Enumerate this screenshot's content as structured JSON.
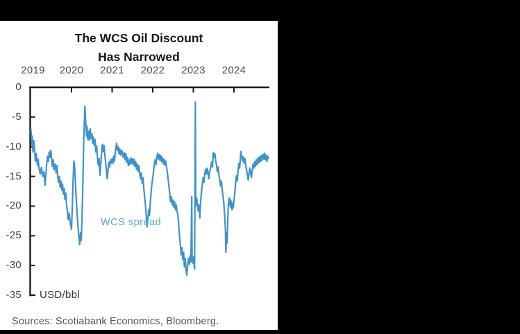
{
  "page": {
    "background": "#000000",
    "panel_background": "#ffffff"
  },
  "title": {
    "line1": "The WCS Oil Discount",
    "line2": "Has Narrowed"
  },
  "footer": {
    "sources": "Sources: Scotiabank Economics, Bloomberg."
  },
  "chart_data": {
    "type": "line",
    "title": "The WCS Oil Discount Has Narrowed",
    "series_label": "WCS spread",
    "unit_label": "USD/bbl",
    "x_ticks": [
      2019,
      2020,
      2021,
      2022,
      2023,
      2024
    ],
    "y_ticks": [
      0,
      -5,
      -10,
      -15,
      -20,
      -25,
      -30,
      -35
    ],
    "xlim": [
      2019.0,
      2024.87
    ],
    "ylim": [
      -35,
      0
    ],
    "grid": false,
    "legend_position": "annotation-inside-plot",
    "line_color": "#3f93cb",
    "annotation_color": "#57a4d5",
    "axis_color": "#1a1a1a",
    "series": [
      {
        "name": "WCS spread",
        "points": [
          [
            2019.0,
            -7.0
          ],
          [
            2019.02,
            -9.6
          ],
          [
            2019.03,
            -8.2
          ],
          [
            2019.05,
            -10.9
          ],
          [
            2019.07,
            -9.0
          ],
          [
            2019.09,
            -10.3
          ],
          [
            2019.11,
            -12.4
          ],
          [
            2019.13,
            -11.2
          ],
          [
            2019.16,
            -13.1
          ],
          [
            2019.18,
            -12.1
          ],
          [
            2019.2,
            -13.6
          ],
          [
            2019.23,
            -14.6
          ],
          [
            2019.26,
            -13.5
          ],
          [
            2019.29,
            -15.0
          ],
          [
            2019.32,
            -14.2
          ],
          [
            2019.35,
            -16.5
          ],
          [
            2019.37,
            -14.8
          ],
          [
            2019.39,
            -12.8
          ],
          [
            2019.41,
            -11.6
          ],
          [
            2019.43,
            -12.5
          ],
          [
            2019.45,
            -10.9
          ],
          [
            2019.47,
            -11.8
          ],
          [
            2019.49,
            -10.6
          ],
          [
            2019.51,
            -11.9
          ],
          [
            2019.53,
            -13.3
          ],
          [
            2019.55,
            -12.2
          ],
          [
            2019.57,
            -13.9
          ],
          [
            2019.6,
            -12.9
          ],
          [
            2019.62,
            -14.4
          ],
          [
            2019.64,
            -13.2
          ],
          [
            2019.66,
            -14.9
          ],
          [
            2019.68,
            -16.0
          ],
          [
            2019.7,
            -15.0
          ],
          [
            2019.72,
            -16.8
          ],
          [
            2019.74,
            -15.8
          ],
          [
            2019.76,
            -17.3
          ],
          [
            2019.78,
            -16.3
          ],
          [
            2019.8,
            -18.0
          ],
          [
            2019.82,
            -17.0
          ],
          [
            2019.84,
            -18.9
          ],
          [
            2019.86,
            -17.8
          ],
          [
            2019.88,
            -19.9
          ],
          [
            2019.9,
            -21.0
          ],
          [
            2019.92,
            -22.3
          ],
          [
            2019.94,
            -21.2
          ],
          [
            2019.96,
            -22.2
          ],
          [
            2019.98,
            -23.2
          ],
          [
            2020.0,
            -23.9
          ],
          [
            2020.02,
            -20.0
          ],
          [
            2020.04,
            -15.5
          ],
          [
            2020.06,
            -12.4
          ],
          [
            2020.08,
            -13.8
          ],
          [
            2020.1,
            -16.5
          ],
          [
            2020.12,
            -19.0
          ],
          [
            2020.14,
            -21.5
          ],
          [
            2020.16,
            -23.5
          ],
          [
            2020.18,
            -25.0
          ],
          [
            2020.2,
            -26.5
          ],
          [
            2020.22,
            -24.5
          ],
          [
            2020.24,
            -25.8
          ],
          [
            2020.26,
            -22.0
          ],
          [
            2020.28,
            -16.0
          ],
          [
            2020.3,
            -9.5
          ],
          [
            2020.32,
            -5.0
          ],
          [
            2020.33,
            -3.2
          ],
          [
            2020.35,
            -6.0
          ],
          [
            2020.37,
            -8.2
          ],
          [
            2020.38,
            -6.5
          ],
          [
            2020.4,
            -8.8
          ],
          [
            2020.42,
            -7.4
          ],
          [
            2020.44,
            -8.9
          ],
          [
            2020.46,
            -7.0
          ],
          [
            2020.48,
            -8.6
          ],
          [
            2020.5,
            -7.8
          ],
          [
            2020.52,
            -9.4
          ],
          [
            2020.54,
            -8.4
          ],
          [
            2020.56,
            -9.8
          ],
          [
            2020.58,
            -8.8
          ],
          [
            2020.6,
            -10.9
          ],
          [
            2020.62,
            -9.9
          ],
          [
            2020.64,
            -11.9
          ],
          [
            2020.66,
            -13.1
          ],
          [
            2020.68,
            -12.0
          ],
          [
            2020.7,
            -14.8
          ],
          [
            2020.72,
            -13.0
          ],
          [
            2020.74,
            -11.0
          ],
          [
            2020.76,
            -9.6
          ],
          [
            2020.78,
            -10.8
          ],
          [
            2020.8,
            -9.8
          ],
          [
            2020.82,
            -11.4
          ],
          [
            2020.84,
            -12.6
          ],
          [
            2020.86,
            -14.0
          ],
          [
            2020.88,
            -15.4
          ],
          [
            2020.9,
            -13.8
          ],
          [
            2020.92,
            -12.6
          ],
          [
            2020.94,
            -13.4
          ],
          [
            2020.96,
            -12.2
          ],
          [
            2020.98,
            -12.8
          ],
          [
            2021.0,
            -12.0
          ],
          [
            2021.02,
            -12.8
          ],
          [
            2021.04,
            -11.6
          ],
          [
            2021.06,
            -12.4
          ],
          [
            2021.08,
            -10.8
          ],
          [
            2021.11,
            -9.4
          ],
          [
            2021.13,
            -10.6
          ],
          [
            2021.15,
            -10.0
          ],
          [
            2021.17,
            -11.2
          ],
          [
            2021.19,
            -10.4
          ],
          [
            2021.21,
            -11.4
          ],
          [
            2021.24,
            -10.6
          ],
          [
            2021.27,
            -11.8
          ],
          [
            2021.3,
            -11.0
          ],
          [
            2021.32,
            -12.2
          ],
          [
            2021.34,
            -11.2
          ],
          [
            2021.36,
            -12.6
          ],
          [
            2021.38,
            -11.8
          ],
          [
            2021.4,
            -13.2
          ],
          [
            2021.42,
            -12.2
          ],
          [
            2021.44,
            -13.0
          ],
          [
            2021.46,
            -11.9
          ],
          [
            2021.48,
            -12.8
          ],
          [
            2021.5,
            -12.0
          ],
          [
            2021.52,
            -13.0
          ],
          [
            2021.54,
            -12.1
          ],
          [
            2021.56,
            -13.3
          ],
          [
            2021.58,
            -12.5
          ],
          [
            2021.6,
            -13.8
          ],
          [
            2021.62,
            -12.9
          ],
          [
            2021.64,
            -14.2
          ],
          [
            2021.66,
            -13.2
          ],
          [
            2021.68,
            -14.6
          ],
          [
            2021.7,
            -15.4
          ],
          [
            2021.72,
            -14.4
          ],
          [
            2021.74,
            -16.2
          ],
          [
            2021.76,
            -15.2
          ],
          [
            2021.78,
            -17.0
          ],
          [
            2021.8,
            -18.4
          ],
          [
            2021.82,
            -19.8
          ],
          [
            2021.84,
            -21.6
          ],
          [
            2021.86,
            -23.5
          ],
          [
            2021.88,
            -22.0
          ],
          [
            2021.9,
            -20.6
          ],
          [
            2021.92,
            -21.6
          ],
          [
            2021.94,
            -19.4
          ],
          [
            2021.96,
            -17.6
          ],
          [
            2021.98,
            -16.2
          ],
          [
            2022.0,
            -15.3
          ],
          [
            2022.02,
            -14.2
          ],
          [
            2022.04,
            -13.0
          ],
          [
            2022.06,
            -12.2
          ],
          [
            2022.08,
            -13.0
          ],
          [
            2022.1,
            -11.9
          ],
          [
            2022.12,
            -11.1
          ],
          [
            2022.14,
            -12.1
          ],
          [
            2022.16,
            -11.3
          ],
          [
            2022.18,
            -12.3
          ],
          [
            2022.2,
            -11.5
          ],
          [
            2022.22,
            -12.5
          ],
          [
            2022.24,
            -11.8
          ],
          [
            2022.26,
            -12.9
          ],
          [
            2022.28,
            -12.1
          ],
          [
            2022.3,
            -13.1
          ],
          [
            2022.32,
            -12.4
          ],
          [
            2022.34,
            -13.4
          ],
          [
            2022.36,
            -14.4
          ],
          [
            2022.38,
            -15.5
          ],
          [
            2022.4,
            -16.7
          ],
          [
            2022.42,
            -18.0
          ],
          [
            2022.44,
            -19.3
          ],
          [
            2022.46,
            -18.4
          ],
          [
            2022.48,
            -19.8
          ],
          [
            2022.5,
            -19.0
          ],
          [
            2022.52,
            -20.2
          ],
          [
            2022.54,
            -19.3
          ],
          [
            2022.56,
            -20.6
          ],
          [
            2022.58,
            -19.8
          ],
          [
            2022.6,
            -20.9
          ],
          [
            2022.62,
            -21.6
          ],
          [
            2022.64,
            -23.2
          ],
          [
            2022.66,
            -25.0
          ],
          [
            2022.68,
            -26.6
          ],
          [
            2022.7,
            -28.2
          ],
          [
            2022.72,
            -27.0
          ],
          [
            2022.74,
            -29.0
          ],
          [
            2022.76,
            -27.8
          ],
          [
            2022.78,
            -30.2
          ],
          [
            2022.8,
            -28.8
          ],
          [
            2022.82,
            -30.8
          ],
          [
            2022.84,
            -31.6
          ],
          [
            2022.86,
            -30.0
          ],
          [
            2022.88,
            -28.8
          ],
          [
            2022.9,
            -29.8
          ],
          [
            2022.92,
            -28.4
          ],
          [
            2022.94,
            -29.4
          ],
          [
            2022.96,
            -18.4
          ],
          [
            2022.97,
            -28.6
          ],
          [
            2022.99,
            -29.6
          ],
          [
            2023.0,
            -28.6
          ],
          [
            2023.02,
            -29.8
          ],
          [
            2023.03,
            -30.6
          ],
          [
            2023.05,
            -2.5
          ],
          [
            2023.06,
            -20.0
          ],
          [
            2023.08,
            -18.6
          ],
          [
            2023.1,
            -19.6
          ],
          [
            2023.12,
            -20.8
          ],
          [
            2023.14,
            -19.8
          ],
          [
            2023.16,
            -22.0
          ],
          [
            2023.18,
            -19.2
          ],
          [
            2023.2,
            -17.6
          ],
          [
            2023.22,
            -16.4
          ],
          [
            2023.24,
            -15.2
          ],
          [
            2023.26,
            -16.0
          ],
          [
            2023.28,
            -14.6
          ],
          [
            2023.3,
            -13.8
          ],
          [
            2023.32,
            -14.6
          ],
          [
            2023.34,
            -13.6
          ],
          [
            2023.36,
            -14.4
          ],
          [
            2023.38,
            -15.4
          ],
          [
            2023.4,
            -14.2
          ],
          [
            2023.42,
            -13.7
          ],
          [
            2023.45,
            -12.6
          ],
          [
            2023.47,
            -13.4
          ],
          [
            2023.49,
            -11.0
          ],
          [
            2023.51,
            -11.8
          ],
          [
            2023.53,
            -11.2
          ],
          [
            2023.55,
            -12.4
          ],
          [
            2023.57,
            -13.0
          ],
          [
            2023.59,
            -14.2
          ],
          [
            2023.61,
            -13.4
          ],
          [
            2023.63,
            -14.8
          ],
          [
            2023.65,
            -15.6
          ],
          [
            2023.67,
            -16.6
          ],
          [
            2023.69,
            -15.8
          ],
          [
            2023.71,
            -17.2
          ],
          [
            2023.73,
            -18.3
          ],
          [
            2023.75,
            -19.5
          ],
          [
            2023.77,
            -21.5
          ],
          [
            2023.79,
            -24.0
          ],
          [
            2023.8,
            -27.8
          ],
          [
            2023.82,
            -24.5
          ],
          [
            2023.83,
            -26.2
          ],
          [
            2023.85,
            -22.0
          ],
          [
            2023.86,
            -20.0
          ],
          [
            2023.88,
            -18.6
          ],
          [
            2023.89,
            -19.8
          ],
          [
            2023.91,
            -18.9
          ],
          [
            2023.92,
            -20.2
          ],
          [
            2023.94,
            -19.2
          ],
          [
            2023.95,
            -20.6
          ],
          [
            2023.97,
            -19.6
          ],
          [
            2023.98,
            -20.3
          ],
          [
            2024.0,
            -19.2
          ],
          [
            2024.02,
            -17.8
          ],
          [
            2024.04,
            -16.2
          ],
          [
            2024.06,
            -14.9
          ],
          [
            2024.08,
            -15.8
          ],
          [
            2024.1,
            -14.2
          ],
          [
            2024.12,
            -12.8
          ],
          [
            2024.14,
            -13.6
          ],
          [
            2024.17,
            -10.8
          ],
          [
            2024.19,
            -11.6
          ],
          [
            2024.21,
            -12.4
          ],
          [
            2024.23,
            -11.7
          ],
          [
            2024.25,
            -12.8
          ],
          [
            2024.27,
            -12.0
          ],
          [
            2024.29,
            -13.2
          ],
          [
            2024.31,
            -13.9
          ],
          [
            2024.33,
            -14.7
          ],
          [
            2024.35,
            -15.6
          ],
          [
            2024.37,
            -14.6
          ],
          [
            2024.39,
            -13.6
          ],
          [
            2024.41,
            -14.4
          ],
          [
            2024.43,
            -15.2
          ],
          [
            2024.45,
            -13.9
          ],
          [
            2024.47,
            -12.9
          ],
          [
            2024.49,
            -13.6
          ],
          [
            2024.51,
            -12.5
          ],
          [
            2024.53,
            -13.3
          ],
          [
            2024.55,
            -12.2
          ],
          [
            2024.57,
            -13.0
          ],
          [
            2024.59,
            -11.9
          ],
          [
            2024.61,
            -12.7
          ],
          [
            2024.63,
            -11.7
          ],
          [
            2024.65,
            -12.5
          ],
          [
            2024.67,
            -11.5
          ],
          [
            2024.69,
            -12.3
          ],
          [
            2024.71,
            -11.3
          ],
          [
            2024.73,
            -12.1
          ],
          [
            2024.75,
            -11.1
          ],
          [
            2024.77,
            -12.2
          ],
          [
            2024.79,
            -11.4
          ],
          [
            2024.81,
            -12.5
          ],
          [
            2024.83,
            -11.6
          ],
          [
            2024.85,
            -12.1
          ]
        ]
      }
    ]
  }
}
